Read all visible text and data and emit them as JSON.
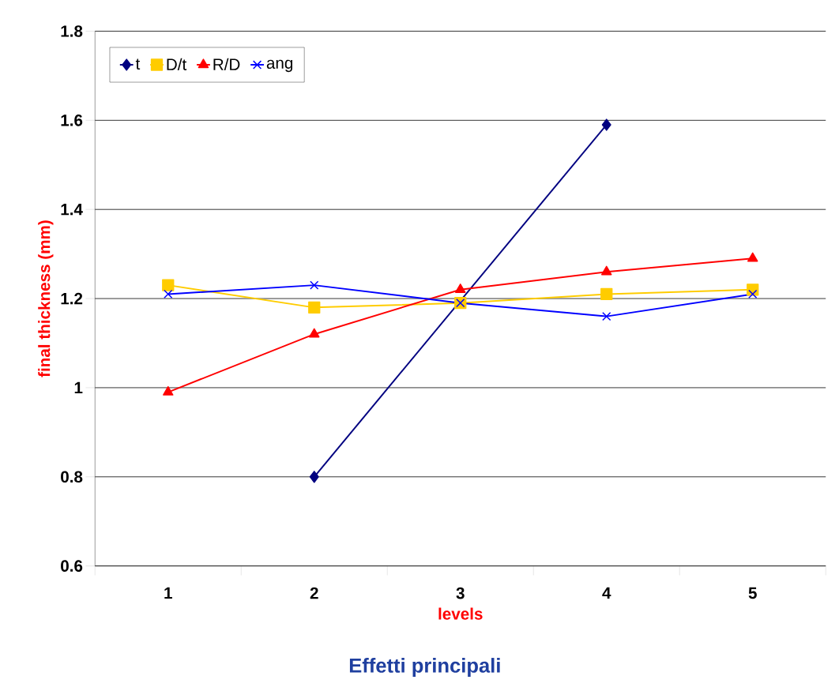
{
  "chart_data": {
    "type": "line",
    "title": "Effetti principali",
    "xlabel": "levels",
    "ylabel": "final thickness (mm)",
    "categories": [
      "1",
      "2",
      "3",
      "4",
      "5"
    ],
    "series": [
      {
        "name": "t",
        "color": "#000080",
        "marker": "diamond",
        "values": [
          null,
          0.8,
          null,
          1.59,
          null
        ]
      },
      {
        "name": "D/t",
        "color": "#ffcc00",
        "marker": "square",
        "values": [
          1.23,
          1.18,
          1.19,
          1.21,
          1.22
        ]
      },
      {
        "name": "R/D",
        "color": "#ff0000",
        "marker": "triangle",
        "values": [
          0.99,
          1.12,
          1.22,
          1.26,
          1.29
        ]
      },
      {
        "name": "ang",
        "color": "#0000ff",
        "marker": "cross",
        "values": [
          1.21,
          1.23,
          1.19,
          1.16,
          1.21
        ]
      }
    ],
    "ylim": [
      0.6,
      1.8
    ],
    "yticks": [
      0.6,
      0.8,
      1,
      1.2,
      1.4,
      1.6,
      1.8
    ],
    "grid": "y",
    "legend": "top left",
    "line_style": "solid"
  }
}
